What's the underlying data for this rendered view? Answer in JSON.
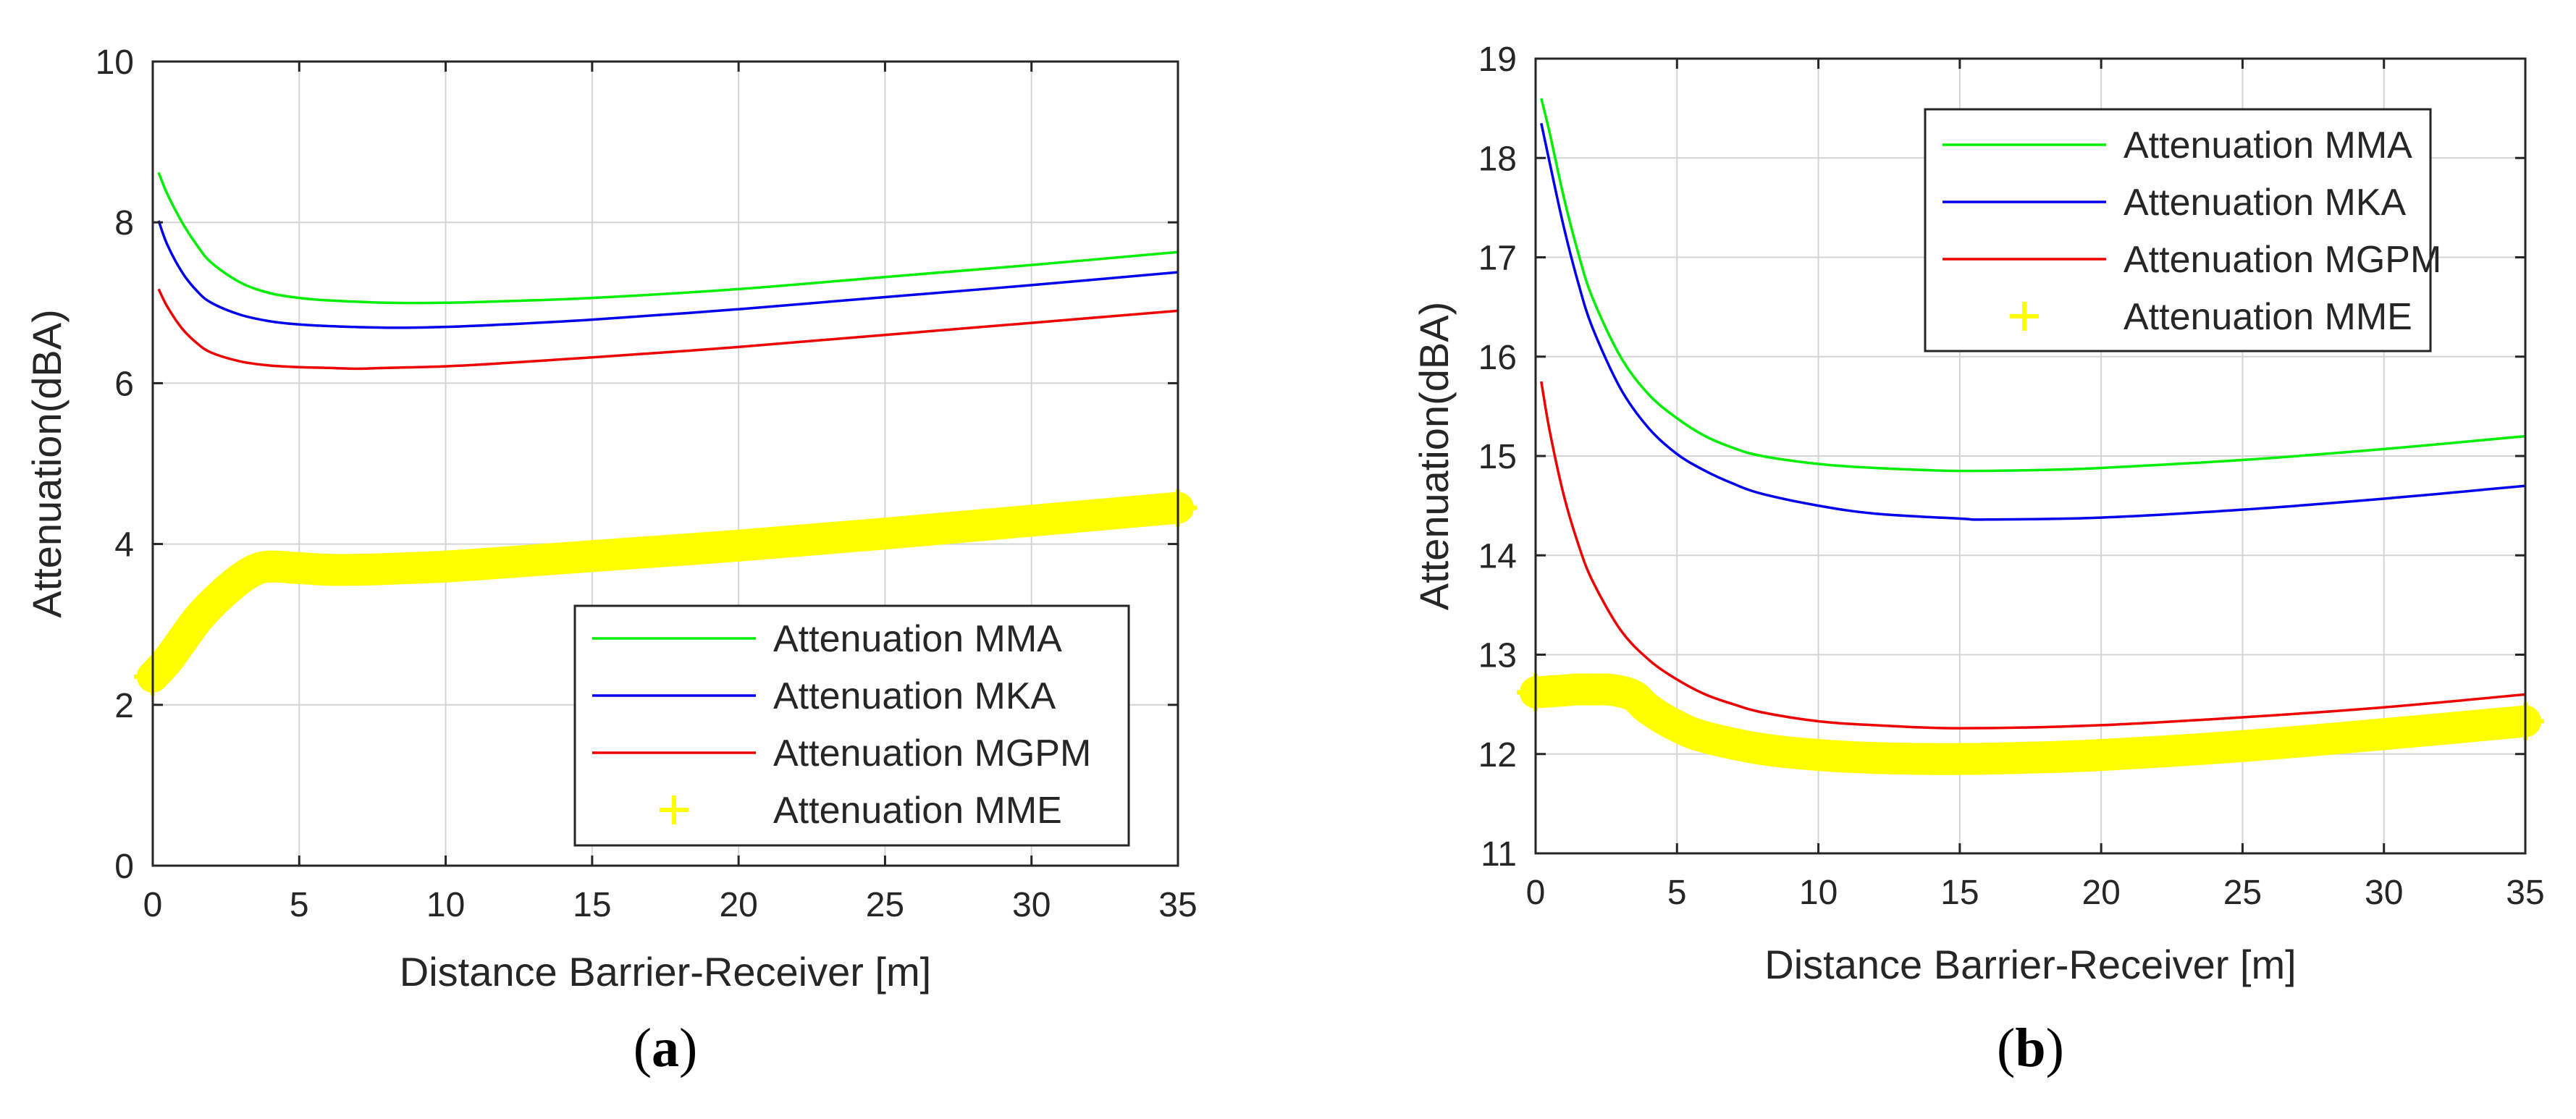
{
  "colors": {
    "mma": "#00ee00",
    "mka": "#0000ee",
    "mgpm": "#ee0000",
    "mme": "#ffff00",
    "axis": "#262626",
    "grid": "#d4d4d4"
  },
  "chart_data": [
    {
      "type": "line",
      "panel_label": "a",
      "xlabel": "Distance Barrier-Receiver [m]",
      "ylabel": "Attenuation(dBA)",
      "xlim": [
        0,
        35
      ],
      "ylim": [
        0,
        10
      ],
      "xticks": [
        0,
        5,
        10,
        15,
        20,
        25,
        30,
        35
      ],
      "yticks": [
        0,
        2,
        4,
        6,
        8,
        10
      ],
      "grid": true,
      "legend_position": "bottom-right",
      "series": [
        {
          "name": "Attenuation MMA",
          "key": "mma",
          "style": "line",
          "color": "#00ee00",
          "x": [
            0.2,
            0.5,
            1,
            1.5,
            2,
            3,
            4,
            5,
            6,
            8,
            10,
            12,
            15,
            20,
            25,
            30,
            35
          ],
          "y": [
            8.62,
            8.35,
            8.0,
            7.72,
            7.5,
            7.25,
            7.12,
            7.06,
            7.03,
            7.0,
            7.0,
            7.02,
            7.06,
            7.17,
            7.32,
            7.47,
            7.63
          ]
        },
        {
          "name": "Attenuation MKA",
          "key": "mka",
          "style": "line",
          "color": "#0000ee",
          "x": [
            0.2,
            0.5,
            1,
            1.5,
            2,
            3,
            4,
            5,
            6,
            8,
            10,
            12,
            15,
            20,
            25,
            30,
            35
          ],
          "y": [
            8.02,
            7.72,
            7.38,
            7.15,
            7.0,
            6.85,
            6.77,
            6.73,
            6.71,
            6.69,
            6.7,
            6.73,
            6.79,
            6.92,
            7.07,
            7.22,
            7.38
          ]
        },
        {
          "name": "Attenuation MGPM",
          "key": "mgpm",
          "style": "line",
          "color": "#ee0000",
          "x": [
            0.2,
            0.5,
            1,
            1.5,
            2,
            3,
            4,
            5,
            6,
            7,
            8,
            10,
            12,
            15,
            20,
            25,
            30,
            35
          ],
          "y": [
            7.17,
            6.95,
            6.68,
            6.5,
            6.38,
            6.27,
            6.22,
            6.2,
            6.19,
            6.18,
            6.19,
            6.21,
            6.25,
            6.32,
            6.45,
            6.6,
            6.75,
            6.9
          ]
        },
        {
          "name": "Attenuation MME",
          "key": "mme",
          "style": "marker",
          "color": "#ffff00",
          "x": [
            0,
            0.5,
            1,
            1.5,
            2,
            2.5,
            3,
            3.5,
            4,
            5,
            6,
            7,
            8,
            10,
            12,
            15,
            20,
            25,
            30,
            35
          ],
          "y": [
            2.35,
            2.55,
            2.8,
            3.05,
            3.25,
            3.42,
            3.57,
            3.68,
            3.72,
            3.7,
            3.68,
            3.68,
            3.69,
            3.72,
            3.77,
            3.85,
            3.98,
            4.13,
            4.29,
            4.45
          ]
        }
      ]
    },
    {
      "type": "line",
      "panel_label": "b",
      "xlabel": "Distance Barrier-Receiver [m]",
      "ylabel": "Attenuation(dBA)",
      "xlim": [
        0,
        35
      ],
      "ylim": [
        11,
        19
      ],
      "xticks": [
        0,
        5,
        10,
        15,
        20,
        25,
        30,
        35
      ],
      "yticks": [
        11,
        12,
        13,
        14,
        15,
        16,
        17,
        18,
        19
      ],
      "grid": true,
      "legend_position": "top-right",
      "series": [
        {
          "name": "Attenuation MMA",
          "key": "mma",
          "style": "line",
          "color": "#00ee00",
          "x": [
            0.2,
            0.5,
            1,
            1.5,
            2,
            3,
            4,
            5,
            6,
            7,
            8,
            10,
            12,
            15,
            18,
            20,
            25,
            30,
            35
          ],
          "y": [
            18.6,
            18.25,
            17.6,
            17.05,
            16.6,
            16.0,
            15.62,
            15.38,
            15.2,
            15.08,
            15.0,
            14.92,
            14.88,
            14.85,
            14.86,
            14.88,
            14.96,
            15.07,
            15.2
          ]
        },
        {
          "name": "Attenuation MKA",
          "key": "mka",
          "style": "line",
          "color": "#0000ee",
          "x": [
            0.2,
            0.5,
            1,
            1.5,
            2,
            3,
            4,
            5,
            6,
            7,
            8,
            10,
            12,
            15,
            16,
            20,
            25,
            30,
            35
          ],
          "y": [
            18.35,
            17.95,
            17.3,
            16.75,
            16.3,
            15.68,
            15.28,
            15.02,
            14.85,
            14.72,
            14.62,
            14.5,
            14.42,
            14.37,
            14.36,
            14.38,
            14.46,
            14.57,
            14.7
          ]
        },
        {
          "name": "Attenuation MGPM",
          "key": "mgpm",
          "style": "line",
          "color": "#ee0000",
          "x": [
            0.2,
            0.5,
            1,
            1.5,
            2,
            3,
            4,
            5,
            6,
            7,
            8,
            10,
            12,
            15,
            20,
            25,
            30,
            35
          ],
          "y": [
            15.75,
            15.25,
            14.6,
            14.12,
            13.75,
            13.25,
            12.95,
            12.75,
            12.6,
            12.5,
            12.42,
            12.33,
            12.29,
            12.26,
            12.29,
            12.37,
            12.47,
            12.6
          ]
        },
        {
          "name": "Attenuation MME",
          "key": "mme",
          "style": "marker",
          "color": "#ffff00",
          "x": [
            0,
            0.5,
            1,
            1.5,
            2,
            2.5,
            3,
            3.5,
            4,
            5,
            6,
            8,
            10,
            12,
            14,
            15,
            17,
            20,
            25,
            30,
            35
          ],
          "y": [
            12.62,
            12.63,
            12.64,
            12.65,
            12.65,
            12.65,
            12.63,
            12.58,
            12.45,
            12.28,
            12.17,
            12.05,
            11.99,
            11.96,
            11.95,
            11.95,
            11.96,
            11.99,
            12.08,
            12.2,
            12.33
          ]
        }
      ]
    }
  ]
}
